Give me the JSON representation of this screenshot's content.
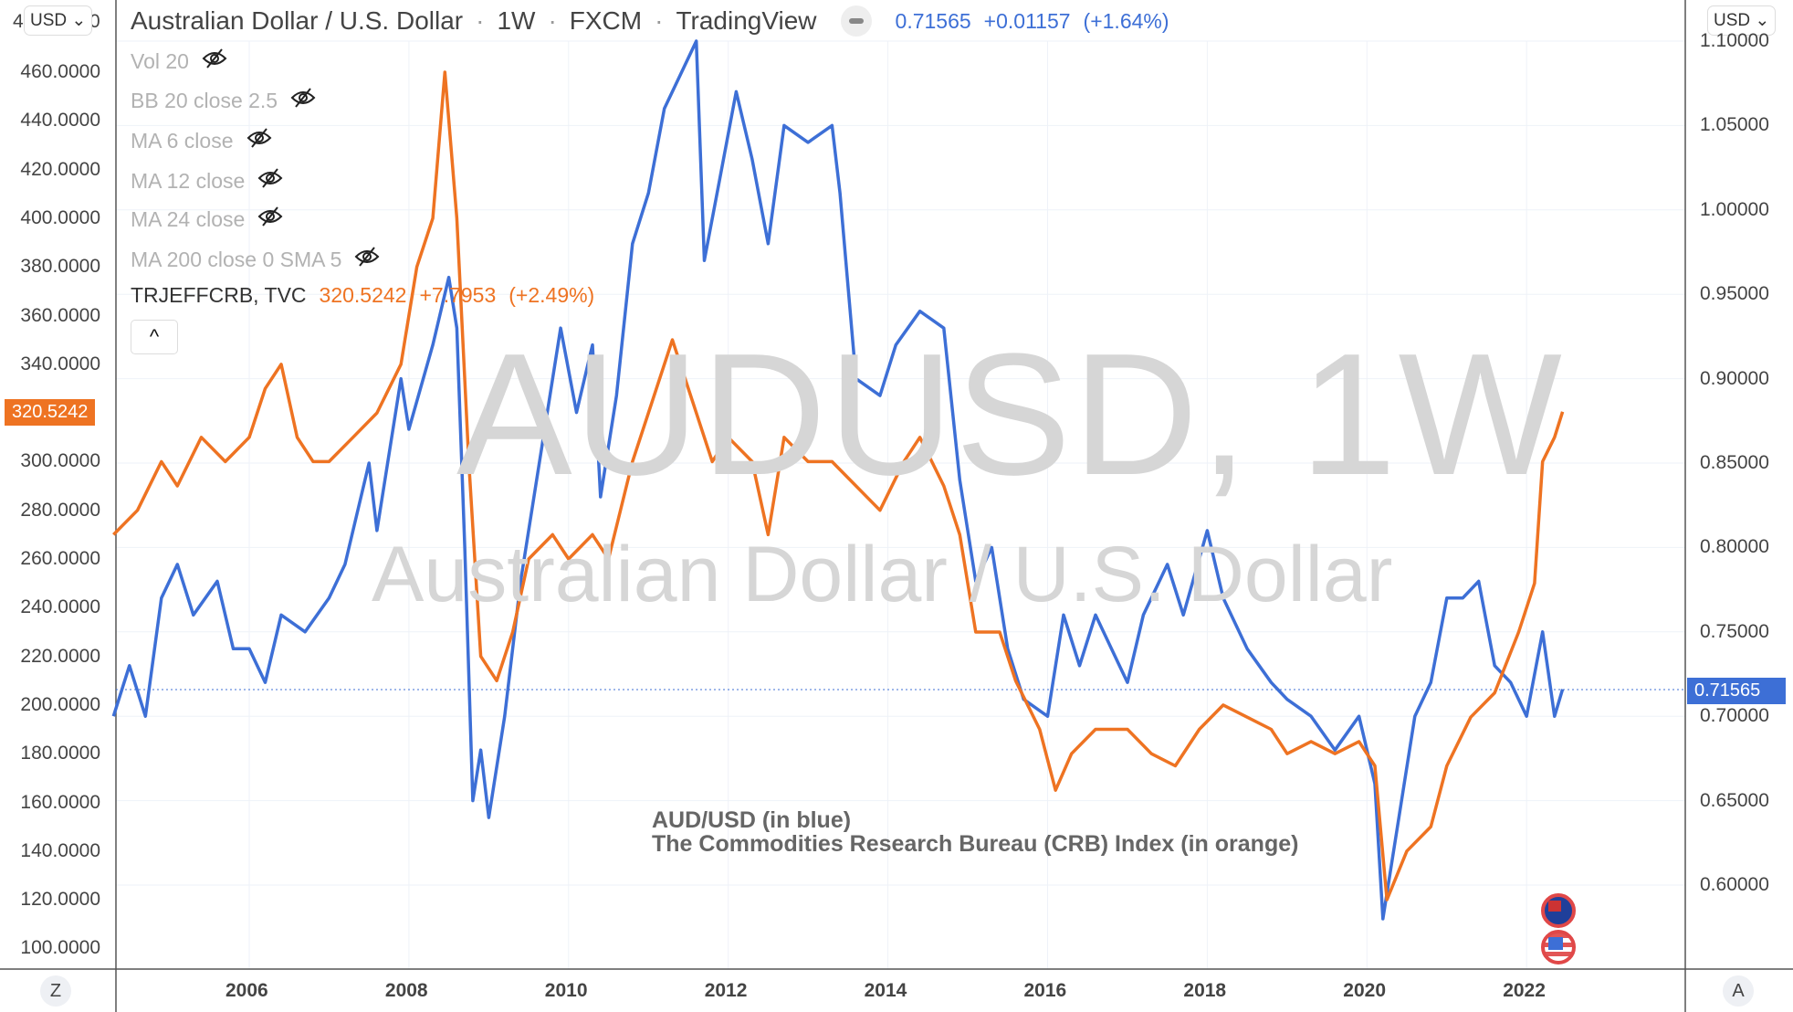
{
  "header": {
    "title": "Australian Dollar / U.S. Dollar",
    "interval": "1W",
    "exchange": "FXCM",
    "source": "TradingView",
    "sep": "·",
    "price": "0.71565",
    "change": "+0.01157",
    "change_pct": "(+1.64%)"
  },
  "legend": [
    {
      "label": "Vol 20"
    },
    {
      "label": "BB 20 close 2.5"
    },
    {
      "label": "MA 6 close"
    },
    {
      "label": "MA 12 close"
    },
    {
      "label": "MA 24 close"
    },
    {
      "label": "MA 200 close 0 SMA 5"
    }
  ],
  "compare": {
    "symbol": "TRJEFFCRB, TVC",
    "value": "320.5242",
    "change": "+7.7953",
    "change_pct": "(+2.49%)"
  },
  "collapse_icon": "^",
  "currency_left": "USD",
  "currency_right": "USD",
  "left_axis_partial": [
    "4",
    "0"
  ],
  "watermark": {
    "line1": "AUDUSD, 1W",
    "line2": "Australian Dollar / U.S. Dollar"
  },
  "annotation": {
    "line1": "AUD/USD (in blue)",
    "line2": "The Commodities Research Bureau (CRB) Index (in orange)"
  },
  "bottom": {
    "left_button": "Z",
    "right_button": "A"
  },
  "colors": {
    "aud": "#3d6fd6",
    "crb": "#ee7322",
    "grid": "#eef2f8"
  },
  "chart_data": {
    "type": "line",
    "x_ticks": [
      "2006",
      "2008",
      "2010",
      "2012",
      "2014",
      "2016",
      "2018",
      "2020",
      "2022"
    ],
    "left_ticks": [
      "460.0000",
      "440.0000",
      "420.0000",
      "400.0000",
      "380.0000",
      "360.0000",
      "340.0000",
      "300.0000",
      "280.0000",
      "260.0000",
      "240.0000",
      "220.0000",
      "200.0000",
      "180.0000",
      "160.0000",
      "140.0000",
      "120.0000",
      "100.0000"
    ],
    "right_ticks": [
      "1.10000",
      "1.05000",
      "1.00000",
      "0.95000",
      "0.90000",
      "0.85000",
      "0.80000",
      "0.75000",
      "0.70000",
      "0.65000",
      "0.60000"
    ],
    "left_last": "320.5242",
    "right_last": "0.71565",
    "series": [
      {
        "name": "AUD/USD",
        "axis": "right",
        "points": [
          [
            2004.3,
            0.7
          ],
          [
            2004.5,
            0.73
          ],
          [
            2004.7,
            0.7
          ],
          [
            2004.9,
            0.77
          ],
          [
            2005.1,
            0.79
          ],
          [
            2005.3,
            0.76
          ],
          [
            2005.6,
            0.78
          ],
          [
            2005.8,
            0.74
          ],
          [
            2006.0,
            0.74
          ],
          [
            2006.2,
            0.72
          ],
          [
            2006.4,
            0.76
          ],
          [
            2006.7,
            0.75
          ],
          [
            2007.0,
            0.77
          ],
          [
            2007.2,
            0.79
          ],
          [
            2007.5,
            0.85
          ],
          [
            2007.6,
            0.81
          ],
          [
            2007.9,
            0.9
          ],
          [
            2008.0,
            0.87
          ],
          [
            2008.3,
            0.92
          ],
          [
            2008.5,
            0.96
          ],
          [
            2008.6,
            0.93
          ],
          [
            2008.7,
            0.8
          ],
          [
            2008.8,
            0.65
          ],
          [
            2008.9,
            0.68
          ],
          [
            2009.0,
            0.64
          ],
          [
            2009.2,
            0.7
          ],
          [
            2009.4,
            0.78
          ],
          [
            2009.6,
            0.84
          ],
          [
            2009.9,
            0.93
          ],
          [
            2010.1,
            0.88
          ],
          [
            2010.3,
            0.92
          ],
          [
            2010.4,
            0.83
          ],
          [
            2010.6,
            0.89
          ],
          [
            2010.8,
            0.98
          ],
          [
            2011.0,
            1.01
          ],
          [
            2011.2,
            1.06
          ],
          [
            2011.4,
            1.08
          ],
          [
            2011.6,
            1.1
          ],
          [
            2011.7,
            0.97
          ],
          [
            2011.9,
            1.02
          ],
          [
            2012.1,
            1.07
          ],
          [
            2012.3,
            1.03
          ],
          [
            2012.5,
            0.98
          ],
          [
            2012.7,
            1.05
          ],
          [
            2013.0,
            1.04
          ],
          [
            2013.3,
            1.05
          ],
          [
            2013.4,
            1.01
          ],
          [
            2013.6,
            0.9
          ],
          [
            2013.9,
            0.89
          ],
          [
            2014.1,
            0.92
          ],
          [
            2014.4,
            0.94
          ],
          [
            2014.7,
            0.93
          ],
          [
            2014.9,
            0.84
          ],
          [
            2015.1,
            0.78
          ],
          [
            2015.3,
            0.8
          ],
          [
            2015.5,
            0.74
          ],
          [
            2015.7,
            0.71
          ],
          [
            2016.0,
            0.7
          ],
          [
            2016.2,
            0.76
          ],
          [
            2016.4,
            0.73
          ],
          [
            2016.6,
            0.76
          ],
          [
            2016.9,
            0.73
          ],
          [
            2017.0,
            0.72
          ],
          [
            2017.2,
            0.76
          ],
          [
            2017.5,
            0.79
          ],
          [
            2017.7,
            0.76
          ],
          [
            2018.0,
            0.81
          ],
          [
            2018.2,
            0.77
          ],
          [
            2018.5,
            0.74
          ],
          [
            2018.8,
            0.72
          ],
          [
            2019.0,
            0.71
          ],
          [
            2019.3,
            0.7
          ],
          [
            2019.6,
            0.68
          ],
          [
            2019.9,
            0.7
          ],
          [
            2020.1,
            0.66
          ],
          [
            2020.2,
            0.58
          ],
          [
            2020.4,
            0.64
          ],
          [
            2020.6,
            0.7
          ],
          [
            2020.8,
            0.72
          ],
          [
            2021.0,
            0.77
          ],
          [
            2021.2,
            0.77
          ],
          [
            2021.4,
            0.78
          ],
          [
            2021.6,
            0.73
          ],
          [
            2021.8,
            0.72
          ],
          [
            2022.0,
            0.7
          ],
          [
            2022.2,
            0.75
          ],
          [
            2022.35,
            0.7
          ],
          [
            2022.45,
            0.716
          ]
        ]
      },
      {
        "name": "CRB Index",
        "axis": "left",
        "points": [
          [
            2004.3,
            270
          ],
          [
            2004.6,
            280
          ],
          [
            2004.9,
            300
          ],
          [
            2005.1,
            290
          ],
          [
            2005.4,
            310
          ],
          [
            2005.7,
            300
          ],
          [
            2006.0,
            310
          ],
          [
            2006.2,
            330
          ],
          [
            2006.4,
            340
          ],
          [
            2006.6,
            310
          ],
          [
            2006.8,
            300
          ],
          [
            2007.0,
            300
          ],
          [
            2007.3,
            310
          ],
          [
            2007.6,
            320
          ],
          [
            2007.9,
            340
          ],
          [
            2008.1,
            380
          ],
          [
            2008.3,
            400
          ],
          [
            2008.45,
            460
          ],
          [
            2008.6,
            400
          ],
          [
            2008.75,
            300
          ],
          [
            2008.9,
            220
          ],
          [
            2009.1,
            210
          ],
          [
            2009.3,
            230
          ],
          [
            2009.5,
            260
          ],
          [
            2009.8,
            270
          ],
          [
            2010.0,
            260
          ],
          [
            2010.3,
            270
          ],
          [
            2010.5,
            260
          ],
          [
            2010.8,
            300
          ],
          [
            2011.0,
            320
          ],
          [
            2011.3,
            350
          ],
          [
            2011.5,
            330
          ],
          [
            2011.8,
            300
          ],
          [
            2012.0,
            310
          ],
          [
            2012.3,
            300
          ],
          [
            2012.5,
            270
          ],
          [
            2012.7,
            310
          ],
          [
            2013.0,
            300
          ],
          [
            2013.3,
            300
          ],
          [
            2013.6,
            290
          ],
          [
            2013.9,
            280
          ],
          [
            2014.2,
            300
          ],
          [
            2014.4,
            310
          ],
          [
            2014.7,
            290
          ],
          [
            2014.9,
            270
          ],
          [
            2015.1,
            230
          ],
          [
            2015.4,
            230
          ],
          [
            2015.6,
            210
          ],
          [
            2015.9,
            190
          ],
          [
            2016.1,
            165
          ],
          [
            2016.3,
            180
          ],
          [
            2016.6,
            190
          ],
          [
            2017.0,
            190
          ],
          [
            2017.3,
            180
          ],
          [
            2017.6,
            175
          ],
          [
            2017.9,
            190
          ],
          [
            2018.2,
            200
          ],
          [
            2018.5,
            195
          ],
          [
            2018.8,
            190
          ],
          [
            2019.0,
            180
          ],
          [
            2019.3,
            185
          ],
          [
            2019.6,
            180
          ],
          [
            2019.9,
            185
          ],
          [
            2020.1,
            175
          ],
          [
            2020.25,
            120
          ],
          [
            2020.5,
            140
          ],
          [
            2020.8,
            150
          ],
          [
            2021.0,
            175
          ],
          [
            2021.3,
            195
          ],
          [
            2021.6,
            205
          ],
          [
            2021.9,
            230
          ],
          [
            2022.1,
            250
          ],
          [
            2022.2,
            300
          ],
          [
            2022.35,
            310
          ],
          [
            2022.45,
            320.5
          ]
        ]
      }
    ]
  }
}
